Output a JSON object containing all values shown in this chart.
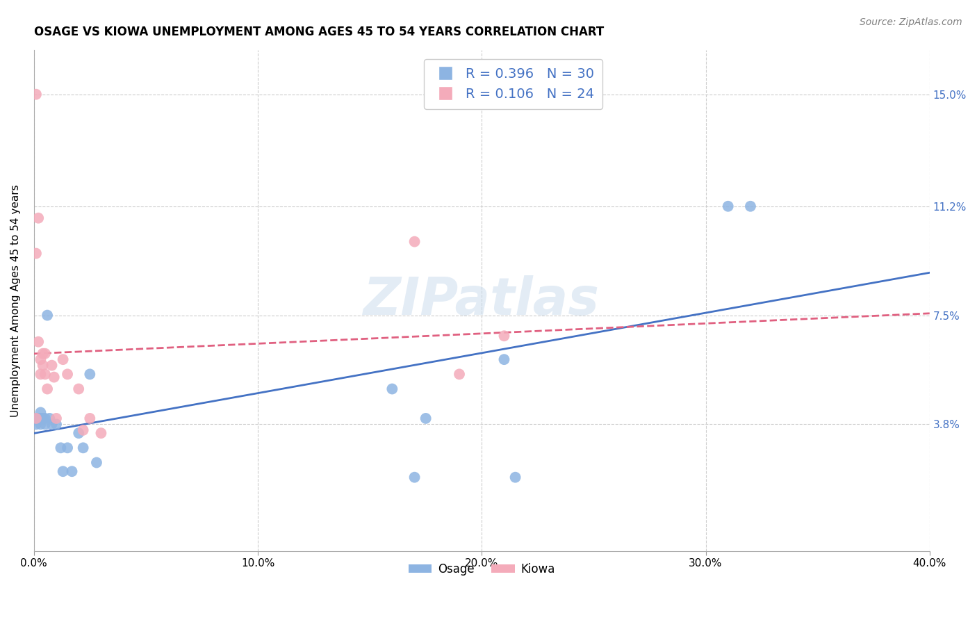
{
  "title": "OSAGE VS KIOWA UNEMPLOYMENT AMONG AGES 45 TO 54 YEARS CORRELATION CHART",
  "source": "Source: ZipAtlas.com",
  "ylabel": "Unemployment Among Ages 45 to 54 years",
  "xlim": [
    0.0,
    0.4
  ],
  "ylim": [
    -0.005,
    0.165
  ],
  "xticks": [
    0.0,
    0.1,
    0.2,
    0.3,
    0.4
  ],
  "xticklabels": [
    "0.0%",
    "10.0%",
    "20.0%",
    "30.0%",
    "40.0%"
  ],
  "ytick_positions": [
    0.038,
    0.075,
    0.112,
    0.15
  ],
  "ytick_labels": [
    "3.8%",
    "7.5%",
    "11.2%",
    "15.0%"
  ],
  "osage_color": "#8DB4E2",
  "kiowa_color": "#F4ABBA",
  "osage_line_color": "#4472C4",
  "kiowa_line_color": "#E06080",
  "R_osage": 0.396,
  "N_osage": 30,
  "R_kiowa": 0.106,
  "N_kiowa": 24,
  "legend_label_osage": "Osage",
  "legend_label_kiowa": "Kiowa",
  "watermark": "ZIPatlas",
  "background_color": "#FFFFFF",
  "grid_color": "#CCCCCC",
  "osage_x": [
    0.001,
    0.001,
    0.002,
    0.002,
    0.003,
    0.003,
    0.003,
    0.004,
    0.004,
    0.005,
    0.005,
    0.006,
    0.007,
    0.008,
    0.01,
    0.012,
    0.013,
    0.015,
    0.017,
    0.02,
    0.022,
    0.025,
    0.028,
    0.16,
    0.17,
    0.175,
    0.21,
    0.215,
    0.31,
    0.32
  ],
  "osage_y": [
    0.04,
    0.038,
    0.04,
    0.04,
    0.042,
    0.04,
    0.038,
    0.04,
    0.04,
    0.04,
    0.038,
    0.075,
    0.04,
    0.038,
    0.038,
    0.03,
    0.022,
    0.03,
    0.022,
    0.035,
    0.03,
    0.055,
    0.025,
    0.05,
    0.02,
    0.04,
    0.06,
    0.02,
    0.112,
    0.112
  ],
  "kiowa_x": [
    0.001,
    0.001,
    0.001,
    0.002,
    0.002,
    0.003,
    0.003,
    0.004,
    0.004,
    0.005,
    0.005,
    0.006,
    0.008,
    0.009,
    0.01,
    0.013,
    0.015,
    0.02,
    0.022,
    0.025,
    0.03,
    0.17,
    0.19,
    0.21
  ],
  "kiowa_y": [
    0.15,
    0.096,
    0.04,
    0.108,
    0.066,
    0.06,
    0.055,
    0.062,
    0.058,
    0.055,
    0.062,
    0.05,
    0.058,
    0.054,
    0.04,
    0.06,
    0.055,
    0.05,
    0.036,
    0.04,
    0.035,
    0.1,
    0.055,
    0.068
  ]
}
